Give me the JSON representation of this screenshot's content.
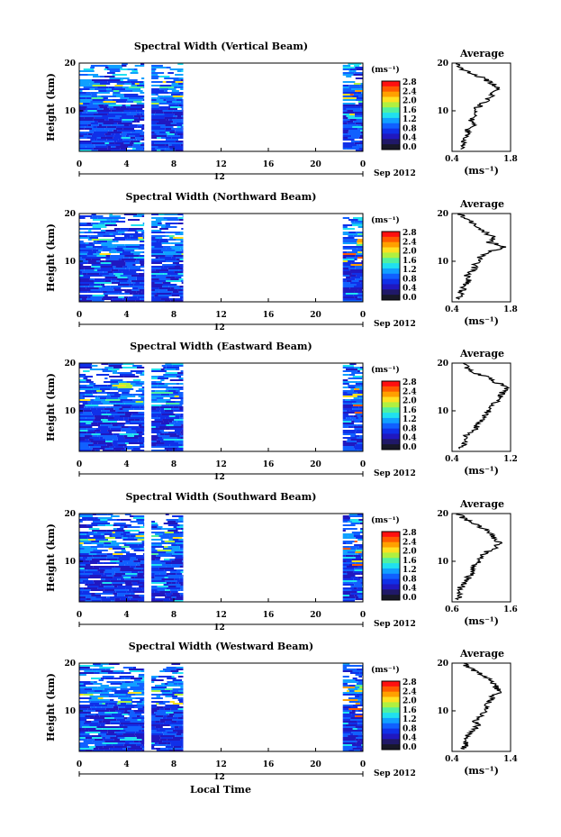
{
  "x_label": "Local Time",
  "date_label": "Sep 2012",
  "day_label": "12",
  "colorbar": {
    "unit": "(ms⁻¹)",
    "ticks": [
      "2.8",
      "2.4",
      "2.0",
      "1.6",
      "1.2",
      "0.8",
      "0.4",
      "0.0"
    ],
    "colors": [
      "#ff1010",
      "#ff5a00",
      "#ffa000",
      "#ffe020",
      "#b0f040",
      "#50f0a0",
      "#20e0f0",
      "#10a0ff",
      "#1060ff",
      "#1030e8",
      "#2018c0",
      "#201868",
      "#181828"
    ]
  },
  "chart_data": [
    {
      "type": "heatmap",
      "title": "Spectral Width (Vertical Beam)",
      "xlabel": "Local Time",
      "ylabel": "Height (km)",
      "x_ticks": [
        "0",
        "4",
        "8",
        "12",
        "16",
        "20",
        "0"
      ],
      "y_ticks": [
        "20",
        "10"
      ],
      "xlim": [
        0,
        24
      ],
      "ylim": [
        1.5,
        20
      ],
      "data_segments_hours": [
        [
          0,
          5.5
        ],
        [
          6.1,
          8.8
        ],
        [
          22.3,
          24
        ]
      ],
      "colorbar_range": [
        0.0,
        2.8
      ],
      "average_profile": {
        "title": "Average",
        "xlabel": "(ms⁻¹)",
        "x_ticks": [
          "0.4",
          "1.8"
        ],
        "xlim": [
          0.4,
          1.8
        ],
        "height_km": [
          2,
          3,
          4,
          5,
          6,
          7,
          8,
          9,
          10,
          11,
          12,
          13,
          14,
          15,
          16,
          17,
          18,
          19,
          20
        ],
        "width_ms": [
          0.6,
          0.7,
          0.65,
          0.8,
          0.75,
          0.9,
          0.85,
          1.0,
          0.9,
          1.05,
          1.2,
          1.3,
          1.45,
          1.5,
          1.3,
          1.1,
          0.8,
          0.6,
          0.5
        ]
      }
    },
    {
      "type": "heatmap",
      "title": "Spectral Width (Northward Beam)",
      "xlabel": "Local Time",
      "ylabel": "Height (km)",
      "x_ticks": [
        "0",
        "4",
        "8",
        "12",
        "16",
        "20",
        "0"
      ],
      "y_ticks": [
        "20",
        "10"
      ],
      "xlim": [
        0,
        24
      ],
      "ylim": [
        1.5,
        20
      ],
      "data_segments_hours": [
        [
          0,
          5.5
        ],
        [
          6.1,
          8.8
        ],
        [
          22.3,
          24
        ]
      ],
      "colorbar_range": [
        0.0,
        2.8
      ],
      "average_profile": {
        "title": "Average",
        "xlabel": "(ms⁻¹)",
        "x_ticks": [
          "0.4",
          "1.8"
        ],
        "xlim": [
          0.4,
          1.8
        ],
        "height_km": [
          2,
          3,
          4,
          5,
          6,
          7,
          8,
          9,
          10,
          11,
          12,
          13,
          14,
          15,
          16,
          17,
          18,
          19,
          20
        ],
        "width_ms": [
          0.55,
          0.6,
          0.65,
          0.7,
          0.8,
          0.75,
          0.9,
          0.95,
          1.0,
          1.1,
          1.25,
          1.7,
          1.3,
          1.4,
          1.2,
          1.0,
          0.9,
          0.7,
          0.6
        ]
      }
    },
    {
      "type": "heatmap",
      "title": "Spectral Width (Eastward Beam)",
      "xlabel": "Local Time",
      "ylabel": "Height (km)",
      "x_ticks": [
        "0",
        "4",
        "8",
        "12",
        "16",
        "20",
        "0"
      ],
      "y_ticks": [
        "20",
        "10"
      ],
      "xlim": [
        0,
        24
      ],
      "ylim": [
        1.5,
        20
      ],
      "data_segments_hours": [
        [
          0,
          5.5
        ],
        [
          6.1,
          8.8
        ],
        [
          22.3,
          24
        ]
      ],
      "colorbar_range": [
        0.0,
        2.8
      ],
      "average_profile": {
        "title": "Average",
        "xlabel": "(ms⁻¹)",
        "x_ticks": [
          "0.4",
          "1.2"
        ],
        "xlim": [
          0.4,
          1.2
        ],
        "height_km": [
          2,
          3,
          4,
          5,
          6,
          7,
          8,
          9,
          10,
          11,
          12,
          13,
          14,
          15,
          16,
          17,
          18,
          19,
          20
        ],
        "width_ms": [
          0.5,
          0.55,
          0.6,
          0.6,
          0.7,
          0.75,
          0.8,
          0.85,
          0.9,
          0.95,
          1.0,
          1.05,
          1.1,
          1.15,
          1.0,
          0.9,
          0.7,
          0.6,
          0.55
        ]
      }
    },
    {
      "type": "heatmap",
      "title": "Spectral Width (Southward Beam)",
      "xlabel": "Local Time",
      "ylabel": "Height (km)",
      "x_ticks": [
        "0",
        "4",
        "8",
        "12",
        "16",
        "20",
        "0"
      ],
      "y_ticks": [
        "20",
        "10"
      ],
      "xlim": [
        0,
        24
      ],
      "ylim": [
        1.5,
        20
      ],
      "data_segments_hours": [
        [
          0,
          5.5
        ],
        [
          6.1,
          8.8
        ],
        [
          22.3,
          24
        ]
      ],
      "colorbar_range": [
        0.0,
        2.8
      ],
      "average_profile": {
        "title": "Average",
        "xlabel": "(ms⁻¹)",
        "x_ticks": [
          "0.6",
          "1.6"
        ],
        "xlim": [
          0.6,
          1.6
        ],
        "height_km": [
          2,
          3,
          4,
          5,
          6,
          7,
          8,
          9,
          10,
          11,
          12,
          13,
          14,
          15,
          16,
          17,
          18,
          19,
          20
        ],
        "width_ms": [
          0.7,
          0.75,
          0.7,
          0.8,
          0.85,
          0.9,
          0.95,
          1.0,
          1.05,
          1.1,
          1.2,
          1.35,
          1.4,
          1.3,
          1.25,
          1.1,
          0.95,
          0.8,
          0.7
        ]
      }
    },
    {
      "type": "heatmap",
      "title": "Spectral Width (Westward Beam)",
      "xlabel": "Local Time",
      "ylabel": "Height (km)",
      "x_ticks": [
        "0",
        "4",
        "8",
        "12",
        "16",
        "20",
        "0"
      ],
      "y_ticks": [
        "20",
        "10"
      ],
      "xlim": [
        0,
        24
      ],
      "ylim": [
        1.5,
        20
      ],
      "data_segments_hours": [
        [
          0,
          5.5
        ],
        [
          6.1,
          8.8
        ],
        [
          22.3,
          24
        ]
      ],
      "colorbar_range": [
        0.0,
        2.8
      ],
      "average_profile": {
        "title": "Average",
        "xlabel": "(ms⁻¹)",
        "x_ticks": [
          "0.4",
          "1.4"
        ],
        "xlim": [
          0.4,
          1.4
        ],
        "height_km": [
          2,
          3,
          4,
          5,
          6,
          7,
          8,
          9,
          10,
          11,
          12,
          13,
          14,
          15,
          16,
          17,
          18,
          19,
          20
        ],
        "width_ms": [
          0.6,
          0.65,
          0.6,
          0.7,
          0.75,
          0.85,
          0.8,
          0.9,
          0.95,
          1.0,
          1.05,
          1.1,
          1.2,
          1.15,
          1.1,
          1.0,
          0.85,
          0.7,
          0.6
        ]
      }
    }
  ]
}
